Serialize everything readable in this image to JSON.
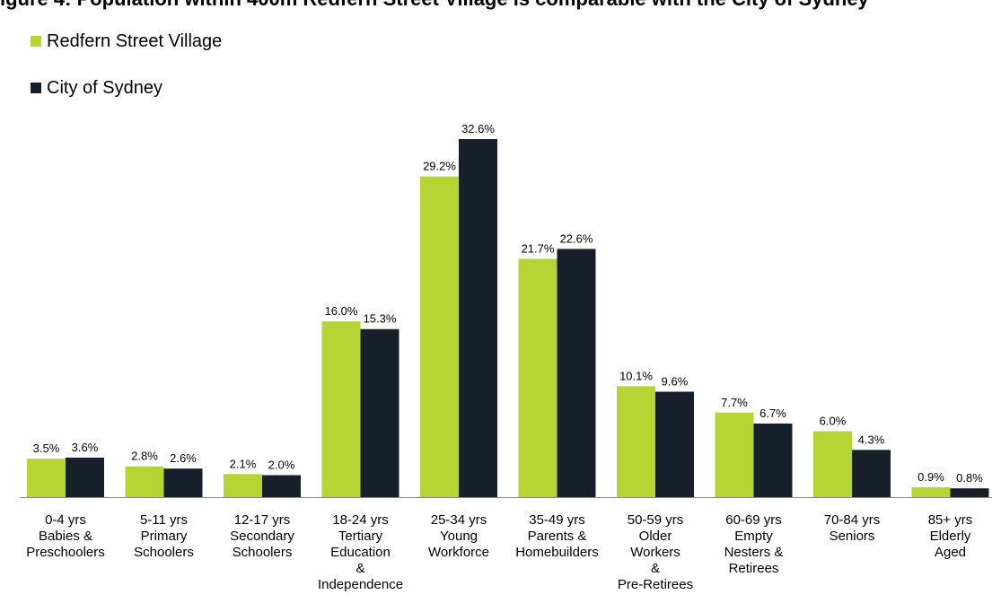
{
  "colors": {
    "series_a": "#b6d433",
    "series_b": "#15202b",
    "axis": "#888888",
    "border": "#d9d9d9"
  },
  "chart_data": {
    "type": "bar",
    "title": "",
    "title_visible_fragment": "igure 4: Population within 400m Redfern Street Village is comparable with the City of Sydney",
    "ylim": [
      0,
      34
    ],
    "grid": false,
    "legend_position": "top-left",
    "data_labels": true,
    "categories": [
      [
        "0-4 yrs",
        "Babies &",
        "Preschoolers"
      ],
      [
        "5-11 yrs",
        "Primary",
        "Schoolers"
      ],
      [
        "12-17 yrs",
        "Secondary",
        "Schoolers"
      ],
      [
        "18-24 yrs",
        "Tertiary",
        "Education",
        "&",
        "Independence"
      ],
      [
        "25-34 yrs",
        "Young",
        "Workforce"
      ],
      [
        "35-49 yrs",
        "Parents &",
        "Homebuilders"
      ],
      [
        "50-59 yrs",
        "Older",
        "Workers",
        "&",
        "Pre-Retirees"
      ],
      [
        "60-69 yrs",
        "Empty",
        "Nesters &",
        "Retirees"
      ],
      [
        "70-84 yrs",
        "Seniors"
      ],
      [
        "85+ yrs",
        "Elderly",
        "Aged"
      ]
    ],
    "series": [
      {
        "name": "Redfern Street Village",
        "color": "#b6d433",
        "values": [
          3.5,
          2.8,
          2.1,
          16.0,
          29.2,
          21.7,
          10.1,
          7.7,
          6.0,
          0.9
        ],
        "labels": [
          "3.5%",
          "2.8%",
          "2.1%",
          "16.0%",
          "29.2%",
          "21.7%",
          "10.1%",
          "7.7%",
          "6.0%",
          "0.9%"
        ]
      },
      {
        "name": "City of Sydney",
        "color": "#15202b",
        "values": [
          3.6,
          2.6,
          2.0,
          15.3,
          32.6,
          22.6,
          9.6,
          6.7,
          4.3,
          0.8
        ],
        "labels": [
          "3.6%",
          "2.6%",
          "2.0%",
          "15.3%",
          "32.6%",
          "22.6%",
          "9.6%",
          "6.7%",
          "4.3%",
          "0.8%"
        ]
      }
    ]
  }
}
